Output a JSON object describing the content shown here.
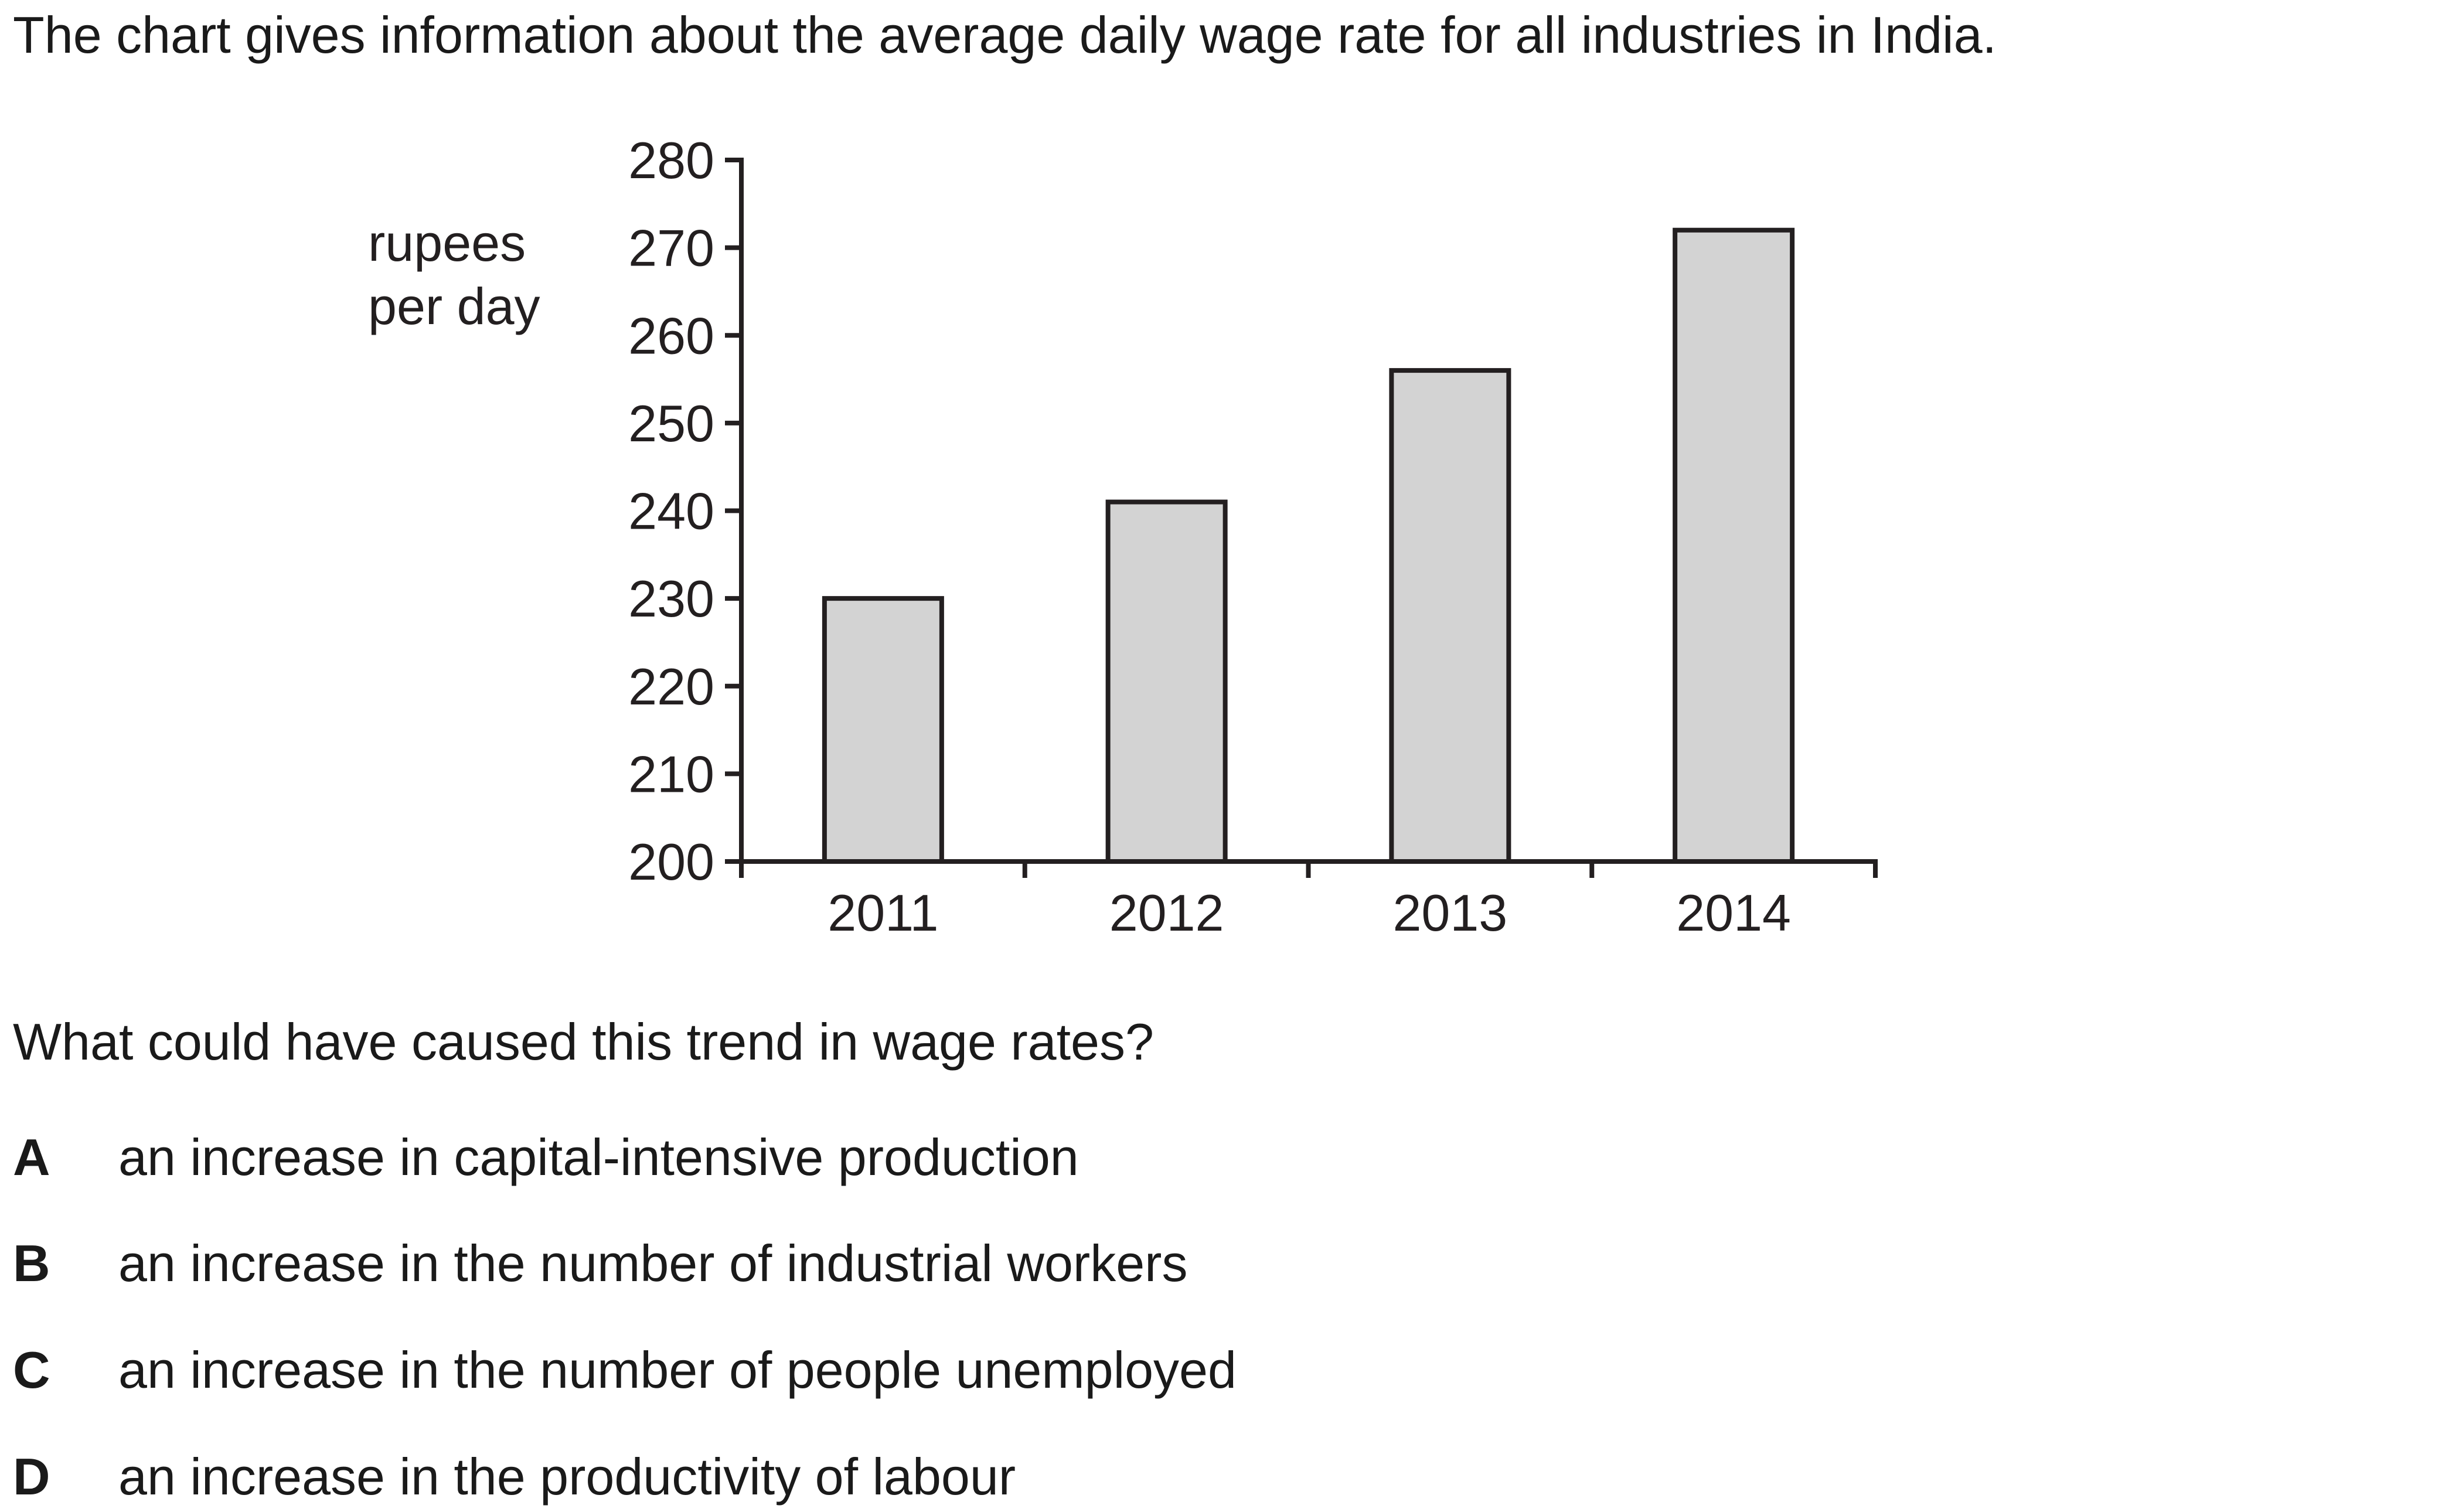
{
  "intro_text": "The chart gives information about the average daily wage rate for all industries in India.",
  "question_text": "What could have caused this trend in wage rates?",
  "options": [
    {
      "letter": "A",
      "text": "an increase in capital-intensive production"
    },
    {
      "letter": "B",
      "text": "an increase in the number of industrial workers"
    },
    {
      "letter": "C",
      "text": "an increase in the number of people unemployed"
    },
    {
      "letter": "D",
      "text": "an increase in the productivity of labour"
    }
  ],
  "colors": {
    "bar_fill": "#d3d3d3",
    "bar_stroke": "#231f20",
    "axis": "#231f20",
    "text": "#231f20"
  },
  "chart_data": {
    "type": "bar",
    "categories": [
      "2011",
      "2012",
      "2013",
      "2014"
    ],
    "values": [
      230,
      241,
      256,
      272
    ],
    "ylabel_lines": [
      "rupees",
      "per day"
    ],
    "yticks": [
      200,
      210,
      220,
      230,
      240,
      250,
      260,
      270,
      280
    ],
    "ylim": [
      200,
      280
    ],
    "grid": false,
    "legend": "none"
  }
}
